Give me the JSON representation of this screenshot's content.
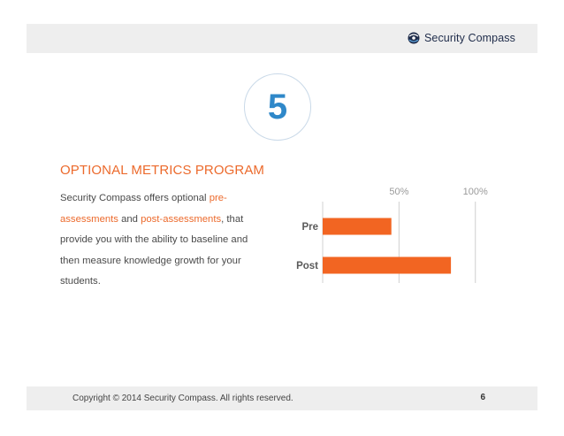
{
  "header": {
    "brand_name": "Security Compass",
    "brand_icon": "compass-logo-icon"
  },
  "step": {
    "number": "5"
  },
  "content": {
    "title": "OPTIONAL METRICS PROGRAM",
    "line1_a": "Security Compass offers optional ",
    "line1_hl": "pre-",
    "line2_hl": "assessments",
    "line2_mid": " and ",
    "line2_hl2": "post-assessments",
    "line2_end": ", that",
    "line3": "provide you with the ability to baseline and",
    "line4": "then measure knowledge growth for your",
    "line5": "students."
  },
  "chart_data": {
    "type": "bar",
    "orientation": "horizontal",
    "categories": [
      "Pre",
      "Post"
    ],
    "values": [
      45,
      84
    ],
    "tick_labels": [
      "50%",
      "100%"
    ],
    "tick_values": [
      50,
      100
    ],
    "xlim": [
      0,
      110
    ],
    "bar_color": "#f26522",
    "grid": true
  },
  "footer": {
    "copyright": "Copyright © 2014 Security Compass. All rights reserved.",
    "page_number": "6"
  },
  "colors": {
    "accent": "#ec6a2c",
    "step_number": "#2f88c9",
    "band": "#eeeeee"
  }
}
